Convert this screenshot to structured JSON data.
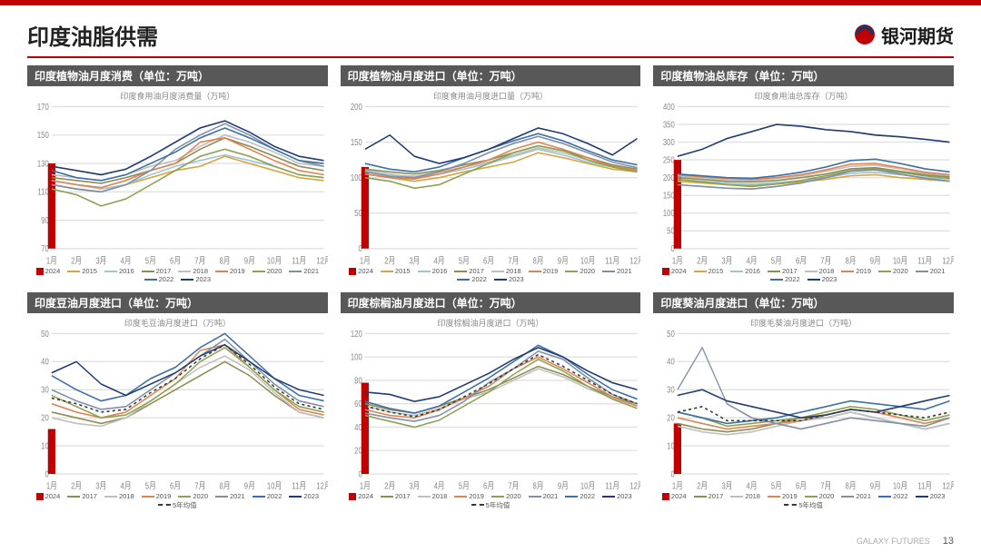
{
  "page": {
    "title": "印度油脂供需",
    "brand": "银河期货",
    "footer_brand": "GALAXY FUTURES",
    "page_number": "13",
    "accent_color": "#c00000",
    "title_bg": "#585858",
    "grid_color": "#e0e0e0",
    "text_color": "#333333"
  },
  "year_colors": {
    "2015": "#d9a441",
    "2016": "#9fc5d3",
    "2017": "#8c8c53",
    "2018": "#bfbfbf",
    "2019": "#dd8452",
    "2020": "#8ca252",
    "2021": "#7f8fa6",
    "2022": "#3c6fa6",
    "2023": "#1f3b73",
    "2024": "#c00000",
    "avg5": "#3a3a3a"
  },
  "x_labels": [
    "1月",
    "2月",
    "3月",
    "4月",
    "5月",
    "6月",
    "7月",
    "8月",
    "9月",
    "10月",
    "11月",
    "12月"
  ],
  "charts": [
    {
      "title_bar": "印度植物油月度消费（单位：万吨）",
      "subtitle": "印度食用油月度消费量（万吨）",
      "ylim": [
        70,
        170
      ],
      "ytick_step": 20,
      "legend_set": "A",
      "bar2024": 130,
      "series": {
        "2015": [
          115,
          112,
          110,
          115,
          120,
          125,
          128,
          135,
          130,
          125,
          120,
          118
        ],
        "2016": [
          118,
          115,
          112,
          115,
          122,
          128,
          132,
          136,
          132,
          128,
          122,
          120
        ],
        "2017": [
          120,
          118,
          116,
          120,
          125,
          130,
          140,
          148,
          142,
          135,
          128,
          125
        ],
        "2018": [
          122,
          120,
          118,
          122,
          128,
          132,
          142,
          150,
          145,
          138,
          130,
          128
        ],
        "2019": [
          118,
          115,
          113,
          118,
          125,
          130,
          145,
          148,
          140,
          132,
          125,
          122
        ],
        "2020": [
          112,
          108,
          100,
          105,
          115,
          125,
          135,
          140,
          135,
          128,
          122,
          120
        ],
        "2021": [
          115,
          112,
          110,
          115,
          125,
          140,
          150,
          158,
          150,
          140,
          132,
          128
        ],
        "2022": [
          125,
          120,
          118,
          122,
          130,
          138,
          148,
          155,
          148,
          140,
          132,
          130
        ],
        "2023": [
          128,
          125,
          122,
          126,
          135,
          145,
          155,
          160,
          152,
          142,
          135,
          132
        ]
      }
    },
    {
      "title_bar": "印度植物油月度进口（单位：万吨）",
      "subtitle": "印度食用油月度进口量（万吨）",
      "ylim": [
        0,
        200
      ],
      "ytick_step": 50,
      "legend_set": "A",
      "bar2024": 115,
      "series": {
        "2015": [
          105,
          100,
          95,
          100,
          108,
          115,
          122,
          135,
          128,
          120,
          112,
          108
        ],
        "2016": [
          110,
          105,
          100,
          105,
          112,
          120,
          130,
          140,
          132,
          122,
          115,
          110
        ],
        "2017": [
          112,
          108,
          105,
          110,
          118,
          125,
          135,
          145,
          138,
          128,
          118,
          112
        ],
        "2018": [
          108,
          104,
          102,
          108,
          115,
          122,
          132,
          142,
          135,
          125,
          116,
          110
        ],
        "2019": [
          105,
          100,
          98,
          105,
          115,
          125,
          140,
          150,
          140,
          128,
          116,
          110
        ],
        "2020": [
          100,
          95,
          85,
          90,
          105,
          120,
          135,
          145,
          138,
          125,
          115,
          108
        ],
        "2021": [
          108,
          102,
          100,
          108,
          120,
          135,
          148,
          158,
          148,
          135,
          122,
          114
        ],
        "2022": [
          120,
          112,
          108,
          115,
          128,
          140,
          152,
          162,
          152,
          138,
          125,
          118
        ],
        "2023": [
          140,
          160,
          130,
          120,
          128,
          140,
          155,
          170,
          162,
          148,
          132,
          155
        ]
      }
    },
    {
      "title_bar": "印度植物油总库存（单位：万吨）",
      "subtitle": "印度食用油总库存（万吨）",
      "ylim": [
        0,
        400
      ],
      "ytick_step": 50,
      "legend_set": "A",
      "bar2024": 250,
      "series": {
        "2015": [
          190,
          185,
          180,
          178,
          182,
          188,
          195,
          205,
          208,
          200,
          195,
          190
        ],
        "2016": [
          195,
          190,
          185,
          182,
          186,
          192,
          200,
          212,
          215,
          208,
          200,
          196
        ],
        "2017": [
          200,
          195,
          190,
          188,
          192,
          200,
          210,
          225,
          228,
          218,
          208,
          202
        ],
        "2018": [
          205,
          200,
          195,
          192,
          198,
          205,
          218,
          232,
          235,
          225,
          212,
          206
        ],
        "2019": [
          208,
          202,
          198,
          195,
          200,
          208,
          222,
          238,
          240,
          228,
          215,
          208
        ],
        "2020": [
          195,
          188,
          180,
          175,
          182,
          192,
          205,
          220,
          225,
          215,
          205,
          198
        ],
        "2021": [
          180,
          175,
          170,
          168,
          175,
          185,
          200,
          218,
          222,
          210,
          198,
          190
        ],
        "2022": [
          210,
          205,
          200,
          198,
          205,
          215,
          230,
          248,
          252,
          240,
          225,
          216
        ],
        "2023": [
          260,
          280,
          310,
          330,
          350,
          345,
          335,
          330,
          320,
          315,
          308,
          300
        ]
      }
    },
    {
      "title_bar": "印度豆油月度进口（单位：万吨）",
      "subtitle": "印度毛豆油月度进口（万吨）",
      "ylim": [
        0,
        50
      ],
      "ytick_step": 10,
      "legend_set": "B",
      "bar2024": 16,
      "series": {
        "2017": [
          22,
          20,
          18,
          20,
          25,
          30,
          35,
          40,
          35,
          28,
          22,
          20
        ],
        "2018": [
          20,
          18,
          17,
          20,
          26,
          32,
          38,
          42,
          37,
          29,
          22,
          20
        ],
        "2019": [
          25,
          22,
          20,
          22,
          28,
          34,
          44,
          46,
          38,
          30,
          23,
          21
        ],
        "2020": [
          28,
          24,
          20,
          21,
          26,
          32,
          40,
          45,
          38,
          30,
          24,
          22
        ],
        "2021": [
          30,
          26,
          23,
          24,
          30,
          36,
          42,
          48,
          40,
          32,
          26,
          24
        ],
        "2022": [
          35,
          30,
          26,
          28,
          34,
          38,
          45,
          50,
          42,
          34,
          28,
          26
        ],
        "2023": [
          36,
          40,
          32,
          28,
          32,
          36,
          42,
          46,
          40,
          34,
          30,
          28
        ],
        "avg5": [
          27,
          25,
          22,
          23,
          29,
          34,
          41,
          46,
          39,
          31,
          25,
          23
        ]
      }
    },
    {
      "title_bar": "印度棕榈油月度进口（单位：万吨）",
      "subtitle": "印度棕榈油月度进口（万吨）",
      "ylim": [
        0,
        120
      ],
      "ytick_step": 20,
      "legend_set": "B",
      "bar2024": 78,
      "series": {
        "2017": [
          60,
          55,
          52,
          58,
          65,
          72,
          82,
          92,
          85,
          75,
          66,
          60
        ],
        "2018": [
          58,
          53,
          50,
          56,
          64,
          70,
          80,
          90,
          83,
          73,
          65,
          58
        ],
        "2019": [
          55,
          50,
          48,
          55,
          65,
          75,
          90,
          100,
          90,
          78,
          66,
          58
        ],
        "2020": [
          50,
          45,
          40,
          46,
          58,
          70,
          85,
          98,
          88,
          75,
          64,
          56
        ],
        "2021": [
          52,
          48,
          45,
          50,
          62,
          78,
          90,
          105,
          98,
          82,
          68,
          60
        ],
        "2022": [
          62,
          56,
          52,
          58,
          70,
          82,
          96,
          110,
          100,
          85,
          72,
          64
        ],
        "2023": [
          70,
          68,
          62,
          66,
          76,
          86,
          98,
          108,
          100,
          88,
          78,
          72
        ],
        "avg5": [
          58,
          53,
          49,
          55,
          66,
          77,
          90,
          102,
          92,
          80,
          68,
          60
        ]
      }
    },
    {
      "title_bar": "印度葵油月度进口（单位：万吨）",
      "subtitle": "印度毛葵油月度进口（万吨）",
      "ylim": [
        0,
        50
      ],
      "ytick_step": 10,
      "legend_set": "B",
      "bar2024": 18,
      "series": {
        "2017": [
          18,
          16,
          15,
          16,
          18,
          20,
          20,
          22,
          20,
          18,
          16,
          18
        ],
        "2018": [
          17,
          15,
          14,
          15,
          17,
          19,
          20,
          22,
          20,
          18,
          16,
          18
        ],
        "2019": [
          20,
          18,
          16,
          17,
          18,
          19,
          21,
          23,
          22,
          20,
          18,
          20
        ],
        "2020": [
          22,
          20,
          17,
          18,
          19,
          20,
          22,
          24,
          23,
          21,
          19,
          21
        ],
        "2021": [
          30,
          45,
          25,
          20,
          18,
          16,
          18,
          20,
          19,
          18,
          17,
          20
        ],
        "2022": [
          22,
          20,
          18,
          19,
          20,
          22,
          24,
          26,
          25,
          24,
          23,
          26
        ],
        "2023": [
          28,
          30,
          26,
          24,
          22,
          20,
          21,
          23,
          22,
          24,
          26,
          28
        ],
        "avg5": [
          22,
          24,
          19,
          19,
          19,
          19,
          21,
          23,
          22,
          21,
          20,
          22
        ]
      }
    }
  ],
  "legend_defs": {
    "A": [
      "2024",
      "2015",
      "2016",
      "2017",
      "2018",
      "2019",
      "2020",
      "2021",
      "2022",
      "2023"
    ],
    "B": [
      "2024",
      "2017",
      "2018",
      "2019",
      "2020",
      "2021",
      "2022",
      "2023",
      "avg5"
    ]
  },
  "labels": {
    "avg5": "5年均值"
  }
}
